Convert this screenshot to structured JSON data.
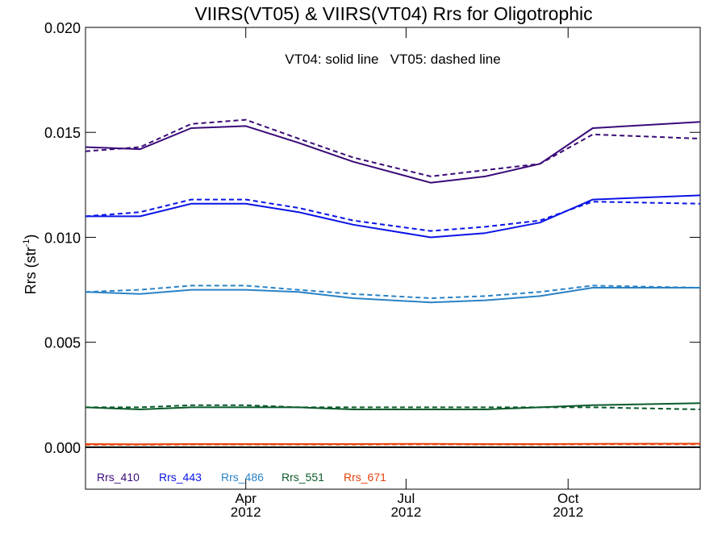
{
  "chart_data": {
    "type": "line",
    "title": "VIIRS(VT05) & VIIRS(VT04)  Rrs for Oligotrophic",
    "annotation": "VT04: solid line   VT05: dashed line",
    "ylabel_main": "Rrs (str",
    "ylabel_sup": "-1",
    "ylabel_tail": ")",
    "ylim": [
      -0.002,
      0.02
    ],
    "yticks": [
      0.0,
      0.005,
      0.01,
      0.015,
      0.02
    ],
    "ytick_labels": [
      "0.000",
      "0.005",
      "0.010",
      "0.015",
      "0.020"
    ],
    "xlim": [
      "2012-01-01",
      "2012-12-15"
    ],
    "xticks": [
      {
        "date": "2012-04-01",
        "month": "Apr",
        "year": "2012"
      },
      {
        "date": "2012-07-01",
        "month": "Jul",
        "year": "2012"
      },
      {
        "date": "2012-10-01",
        "month": "Oct",
        "year": "2012"
      }
    ],
    "x": [
      "2012-01-01",
      "2012-02-01",
      "2012-03-01",
      "2012-04-01",
      "2012-05-01",
      "2012-06-01",
      "2012-07-15",
      "2012-08-15",
      "2012-09-15",
      "2012-10-15",
      "2012-12-15"
    ],
    "zero_line": 0.0,
    "series": [
      {
        "name": "Rrs_410",
        "color": "#3a0a78",
        "line": "solid",
        "values": [
          0.0143,
          0.0142,
          0.0152,
          0.0153,
          0.0145,
          0.0136,
          0.0126,
          0.0129,
          0.0135,
          0.0152,
          0.0155
        ]
      },
      {
        "name": "Rrs_410",
        "color": "#3a0a78",
        "line": "dashed",
        "values": [
          0.0141,
          0.0143,
          0.0154,
          0.0156,
          0.0147,
          0.0138,
          0.0129,
          0.0132,
          0.0135,
          0.0149,
          0.0147
        ]
      },
      {
        "name": "Rrs_443",
        "color": "#0a14e6",
        "line": "solid",
        "values": [
          0.011,
          0.011,
          0.0116,
          0.0116,
          0.0112,
          0.0106,
          0.01,
          0.0102,
          0.0107,
          0.0118,
          0.012
        ]
      },
      {
        "name": "Rrs_443",
        "color": "#0a14e6",
        "line": "dashed",
        "values": [
          0.011,
          0.0112,
          0.0118,
          0.0118,
          0.0114,
          0.0108,
          0.0103,
          0.0105,
          0.0108,
          0.0117,
          0.0116
        ]
      },
      {
        "name": "Rrs_486",
        "color": "#2a82c6",
        "line": "solid",
        "values": [
          0.0074,
          0.0073,
          0.0075,
          0.0075,
          0.0074,
          0.0071,
          0.0069,
          0.007,
          0.0072,
          0.0076,
          0.0076
        ]
      },
      {
        "name": "Rrs_486",
        "color": "#2a82c6",
        "line": "dashed",
        "values": [
          0.0074,
          0.0075,
          0.0077,
          0.0077,
          0.0075,
          0.0073,
          0.0071,
          0.0072,
          0.0074,
          0.0077,
          0.0076
        ]
      },
      {
        "name": "Rrs_551",
        "color": "#0a5a2a",
        "line": "solid",
        "values": [
          0.0019,
          0.0018,
          0.0019,
          0.0019,
          0.0019,
          0.0018,
          0.0018,
          0.0018,
          0.0019,
          0.002,
          0.0021
        ]
      },
      {
        "name": "Rrs_551",
        "color": "#0a5a2a",
        "line": "dashed",
        "values": [
          0.0019,
          0.0019,
          0.002,
          0.002,
          0.0019,
          0.0019,
          0.0019,
          0.0019,
          0.0019,
          0.0019,
          0.0018
        ]
      },
      {
        "name": "Rrs_671",
        "color": "#e8400a",
        "line": "solid",
        "values": [
          0.00015,
          0.00014,
          0.00015,
          0.00015,
          0.00015,
          0.00015,
          0.00016,
          0.00015,
          0.00015,
          0.00016,
          0.00017
        ]
      },
      {
        "name": "Rrs_671",
        "color": "#e8400a",
        "line": "dashed",
        "values": [
          0.00012,
          0.00012,
          0.00013,
          0.00013,
          0.00013,
          0.00013,
          0.00014,
          0.00013,
          0.00013,
          0.00014,
          0.00014
        ]
      }
    ],
    "legend": [
      {
        "label": "Rrs_410",
        "color": "#3a0a78"
      },
      {
        "label": "Rrs_443",
        "color": "#0a14e6"
      },
      {
        "label": "Rrs_486",
        "color": "#2a82c6"
      },
      {
        "label": "Rrs_551",
        "color": "#0a5a2a"
      },
      {
        "label": "Rrs_671",
        "color": "#e8400a"
      }
    ],
    "legend_placement": "bottom-left",
    "grid": false
  }
}
